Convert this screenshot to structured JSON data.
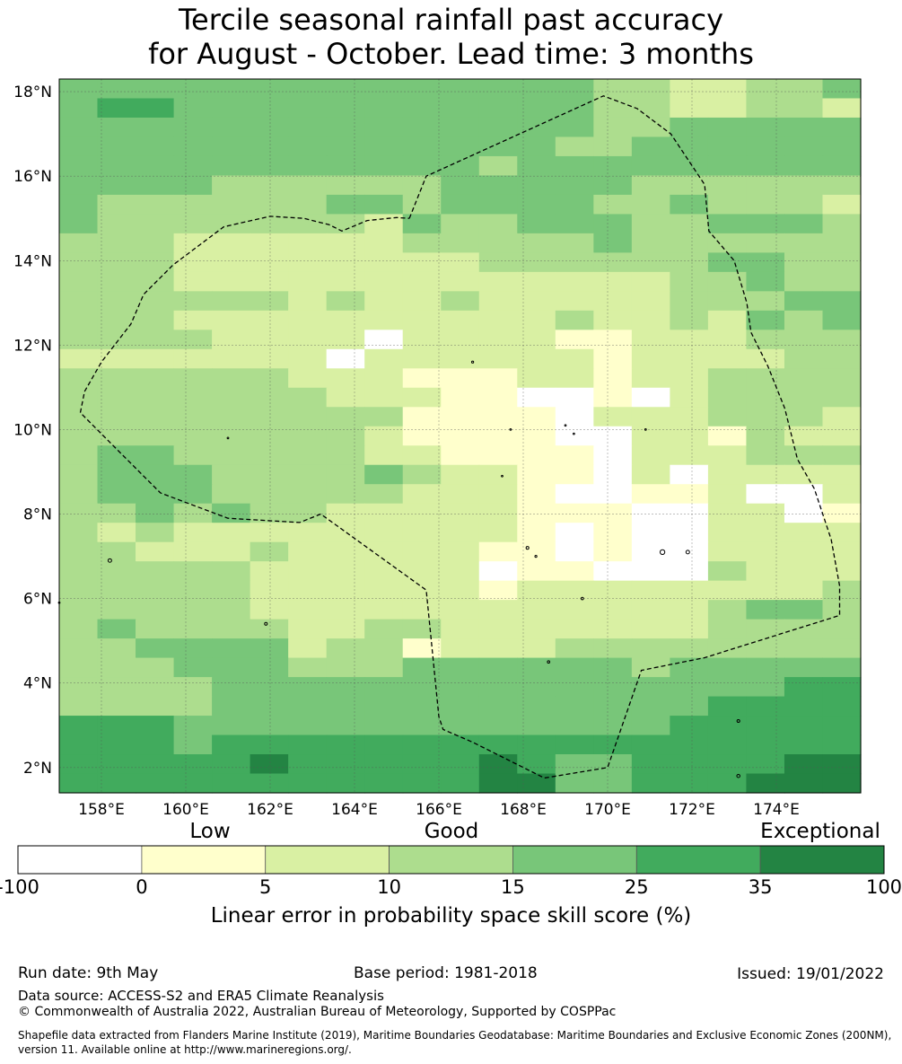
{
  "title_line1": "Tercile seasonal rainfall past accuracy",
  "title_line2": "for August - October. Lead time: 3 months",
  "map": {
    "lon_range": [
      157.0,
      176.0
    ],
    "lat_range": [
      1.4,
      18.3
    ],
    "lon_ticks": [
      158,
      160,
      162,
      164,
      166,
      168,
      170,
      172,
      174
    ],
    "lat_ticks": [
      2,
      4,
      6,
      8,
      10,
      12,
      14,
      16,
      18
    ],
    "lon_tick_labels": [
      "158°E",
      "160°E",
      "162°E",
      "164°E",
      "166°E",
      "168°E",
      "170°E",
      "172°E",
      "174°E"
    ],
    "lat_tick_labels": [
      "2°N",
      "4°N",
      "6°N",
      "8°N",
      "10°N",
      "12°N",
      "14°N",
      "16°N",
      "18°N"
    ],
    "gridlines": true,
    "grid_rows_north_to_south": [
      "444444444444443322334",
      "455444444444443322332",
      "444444444444443344444",
      "444444444444433444444",
      "444444444443444444444",
      "444433333344444333333",
      "433333344344443343332",
      "433333332433444334443",
      "333222222333334333333",
      "333222222223333334433",
      "333222222222222233433",
      "333333232232222233344",
      "333222222222232232434",
      "333322220222211222333",
      "222222202222221222233",
      "333333222111221223333",
      "333333322211001023333",
      "333333333111102223332",
      "333333332111100221322",
      "344333332211110222333",
      "344433334322110202222",
      "344433333222100112002",
      "334343322222111002201",
      "323222222222101002222",
      "332223222221101002222",
      "333332222220110003222",
      "333332222221222222223",
      "333332222222222223443",
      "343333223322222223333",
      "334444233122233333333",
      "333444333444444344444",
      "333344444444444444455",
      "333344444444444445555",
      "555444444444444455555",
      "555455555555555555555",
      "555556555556544555566",
      "555555555556644555666"
    ]
  },
  "colorbar": {
    "categories": [
      "Low",
      "Good",
      "Exceptional"
    ],
    "bounds": [
      "-100",
      "0",
      "5",
      "10",
      "15",
      "25",
      "35",
      "100"
    ],
    "colors": [
      "#ffffff",
      "#ffffcc",
      "#d9f0a3",
      "#addd8e",
      "#78c679",
      "#41ab5d",
      "#238443"
    ],
    "label": "Linear error in probability space skill score (%)"
  },
  "footer": {
    "run_date": "Run date: 9th May",
    "base_period": "Base period: 1981-2018",
    "issued": "Issued: 19/01/2022",
    "data_source": "Data source: ACCESS-S2 and ERA5 Climate Reanalysis",
    "copyright": "© Commonwealth of Australia 2022, Australian Bureau of Meteorology, Supported by COSPPac",
    "shapefile_note": "Shapefile data extracted from Flanders Marine Institute (2019), Maritime Boundaries Geodatabase: Maritime Boundaries and Exclusive Economic Zones (200NM), version 11. Available online at http://www.marineregions.org/."
  }
}
